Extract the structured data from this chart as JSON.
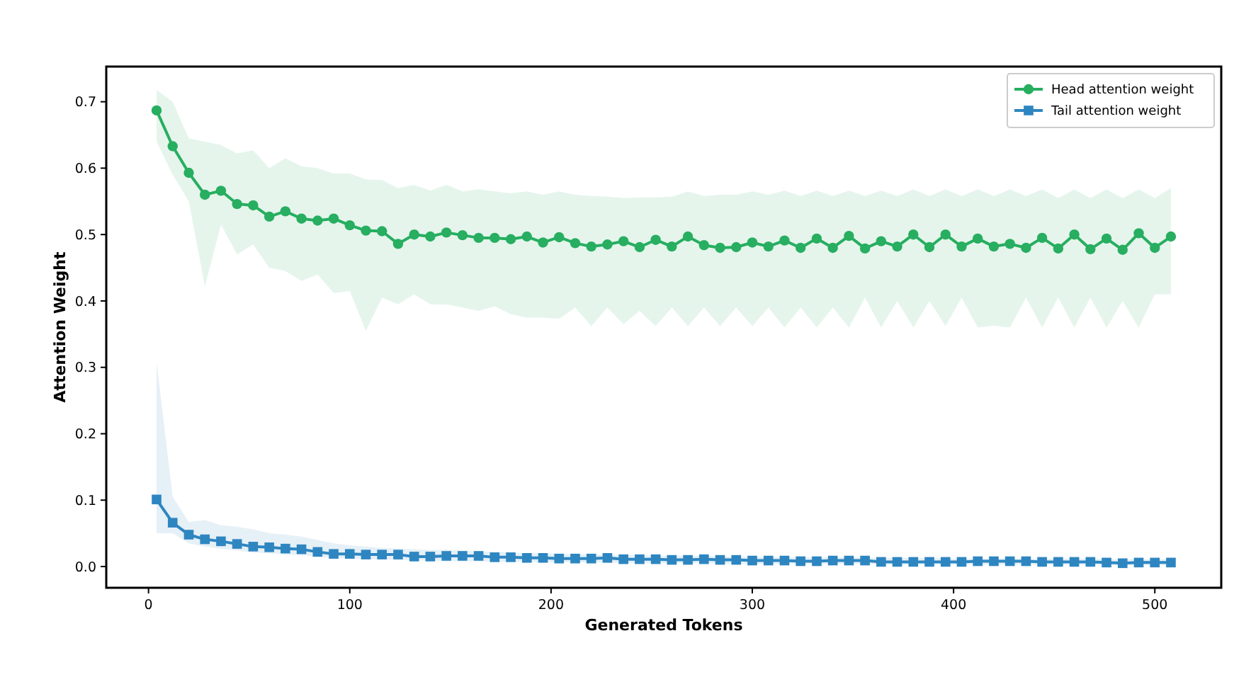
{
  "chart_data": {
    "type": "line",
    "xlabel": "Generated Tokens",
    "ylabel": "Attention Weight",
    "x": [
      4,
      12,
      20,
      28,
      36,
      44,
      52,
      60,
      68,
      76,
      84,
      92,
      100,
      108,
      116,
      124,
      132,
      140,
      148,
      156,
      164,
      172,
      180,
      188,
      196,
      204,
      212,
      220,
      228,
      236,
      244,
      252,
      260,
      268,
      276,
      284,
      292,
      300,
      308,
      316,
      324,
      332,
      340,
      348,
      356,
      364,
      372,
      380,
      388,
      396,
      404,
      412,
      420,
      428,
      436,
      444,
      452,
      460,
      468,
      476,
      484,
      492,
      500,
      508
    ],
    "xlim": [
      -21,
      533
    ],
    "xticks": [
      0,
      100,
      200,
      300,
      400,
      500
    ],
    "ylim": [
      -0.032,
      0.753
    ],
    "yticks": [
      {
        "value": 0,
        "label": "0.0"
      },
      0.1,
      0.2,
      0.3,
      0.4,
      0.5,
      0.6,
      0.7
    ],
    "grid": false,
    "legend": "top right",
    "line_style": "solid",
    "series": [
      {
        "name": "Head attention weight",
        "color": "#27ae60",
        "marker": "circle",
        "values": [
          0.687,
          0.633,
          0.593,
          0.56,
          0.566,
          0.546,
          0.544,
          0.527,
          0.535,
          0.524,
          0.521,
          0.524,
          0.514,
          0.506,
          0.505,
          0.486,
          0.5,
          0.497,
          0.503,
          0.499,
          0.495,
          0.495,
          0.493,
          0.497,
          0.488,
          0.496,
          0.487,
          0.482,
          0.485,
          0.49,
          0.481,
          0.492,
          0.482,
          0.497,
          0.484,
          0.48,
          0.481,
          0.488,
          0.482,
          0.491,
          0.48,
          0.494,
          0.48,
          0.498,
          0.479,
          0.49,
          0.482,
          0.5,
          0.481,
          0.5,
          0.482,
          0.494,
          0.482,
          0.486,
          0.48,
          0.495,
          0.479,
          0.5,
          0.478,
          0.494,
          0.477,
          0.502,
          0.48,
          0.497
        ],
        "upper": [
          0.718,
          0.7,
          0.645,
          0.64,
          0.635,
          0.622,
          0.627,
          0.6,
          0.615,
          0.603,
          0.6,
          0.592,
          0.592,
          0.583,
          0.582,
          0.57,
          0.575,
          0.566,
          0.575,
          0.565,
          0.568,
          0.565,
          0.562,
          0.565,
          0.56,
          0.565,
          0.56,
          0.558,
          0.557,
          0.555,
          0.556,
          0.556,
          0.557,
          0.565,
          0.558,
          0.56,
          0.56,
          0.565,
          0.56,
          0.566,
          0.558,
          0.566,
          0.558,
          0.566,
          0.558,
          0.566,
          0.558,
          0.568,
          0.558,
          0.568,
          0.558,
          0.568,
          0.558,
          0.568,
          0.558,
          0.568,
          0.555,
          0.568,
          0.555,
          0.568,
          0.555,
          0.568,
          0.555,
          0.57
        ],
        "lower": [
          0.64,
          0.59,
          0.55,
          0.422,
          0.515,
          0.47,
          0.485,
          0.45,
          0.445,
          0.43,
          0.44,
          0.412,
          0.415,
          0.355,
          0.405,
          0.395,
          0.41,
          0.395,
          0.395,
          0.39,
          0.385,
          0.392,
          0.38,
          0.375,
          0.375,
          0.373,
          0.39,
          0.362,
          0.39,
          0.365,
          0.385,
          0.362,
          0.39,
          0.362,
          0.39,
          0.362,
          0.39,
          0.362,
          0.39,
          0.36,
          0.39,
          0.36,
          0.39,
          0.36,
          0.405,
          0.36,
          0.4,
          0.36,
          0.4,
          0.362,
          0.405,
          0.36,
          0.363,
          0.36,
          0.405,
          0.36,
          0.405,
          0.36,
          0.405,
          0.36,
          0.4,
          0.36,
          0.41,
          0.41
        ]
      },
      {
        "name": "Tail attention weight",
        "color": "#2e86c1",
        "marker": "square",
        "values": [
          0.101,
          0.066,
          0.048,
          0.041,
          0.038,
          0.034,
          0.03,
          0.029,
          0.027,
          0.026,
          0.022,
          0.019,
          0.019,
          0.018,
          0.018,
          0.018,
          0.015,
          0.015,
          0.016,
          0.016,
          0.016,
          0.014,
          0.014,
          0.013,
          0.013,
          0.012,
          0.012,
          0.012,
          0.013,
          0.011,
          0.011,
          0.011,
          0.01,
          0.01,
          0.011,
          0.01,
          0.01,
          0.009,
          0.009,
          0.009,
          0.008,
          0.008,
          0.009,
          0.009,
          0.009,
          0.007,
          0.007,
          0.007,
          0.007,
          0.007,
          0.007,
          0.008,
          0.008,
          0.008,
          0.008,
          0.007,
          0.007,
          0.007,
          0.007,
          0.006,
          0.005,
          0.006,
          0.006,
          0.006
        ],
        "upper": [
          0.308,
          0.105,
          0.067,
          0.07,
          0.062,
          0.06,
          0.056,
          0.05,
          0.048,
          0.045,
          0.04,
          0.035,
          0.032,
          0.03,
          0.028,
          0.027,
          0.026,
          0.025,
          0.025,
          0.024,
          0.023,
          0.022,
          0.021,
          0.02,
          0.02,
          0.019,
          0.019,
          0.018,
          0.018,
          0.017,
          0.017,
          0.016,
          0.016,
          0.016,
          0.016,
          0.015,
          0.015,
          0.015,
          0.014,
          0.014,
          0.014,
          0.014,
          0.014,
          0.014,
          0.013,
          0.013,
          0.013,
          0.013,
          0.013,
          0.012,
          0.012,
          0.012,
          0.012,
          0.012,
          0.012,
          0.012,
          0.012,
          0.012,
          0.012,
          0.011,
          0.011,
          0.011,
          0.011,
          0.011
        ],
        "lower": [
          0.05,
          0.05,
          0.035,
          0.03,
          0.027,
          0.024,
          0.021,
          0.02,
          0.018,
          0.017,
          0.015,
          0.013,
          0.012,
          0.011,
          0.011,
          0.01,
          0.009,
          0.009,
          0.008,
          0.008,
          0.008,
          0.007,
          0.007,
          0.007,
          0.006,
          0.006,
          0.006,
          0.006,
          0.006,
          0.005,
          0.005,
          0.005,
          0.005,
          0.005,
          0.005,
          0.004,
          0.004,
          0.004,
          0.004,
          0.004,
          0.004,
          0.004,
          0.004,
          0.004,
          0.004,
          0.003,
          0.003,
          0.003,
          0.003,
          0.003,
          0.003,
          0.003,
          0.003,
          0.003,
          0.003,
          0.003,
          0.003,
          0.003,
          0.003,
          0.002,
          0.002,
          0.002,
          0.002,
          0.002
        ]
      }
    ]
  }
}
